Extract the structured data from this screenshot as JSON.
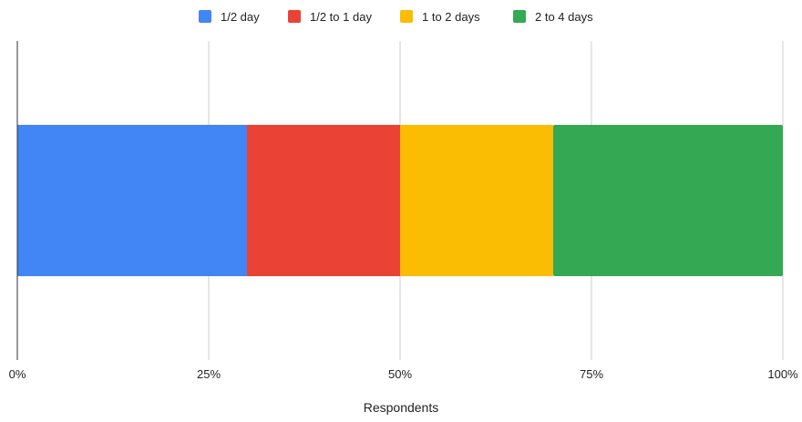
{
  "chart_data": {
    "type": "bar",
    "orientation": "horizontal",
    "stacking": "percent",
    "categories": [
      ""
    ],
    "series": [
      {
        "name": "1/2 day",
        "values": [
          30
        ],
        "color": "#4285F4"
      },
      {
        "name": "1/2 to 1 day",
        "values": [
          20
        ],
        "color": "#EA4335"
      },
      {
        "name": "1 to 2 days",
        "values": [
          20
        ],
        "color": "#FBBC04"
      },
      {
        "name": "2 to 4 days",
        "values": [
          30
        ],
        "color": "#34A853"
      }
    ],
    "title": "",
    "xlabel": "Respondents",
    "ylabel": "",
    "xlim": [
      0,
      100
    ],
    "x_ticks": [
      0,
      25,
      50,
      75,
      100
    ],
    "x_tick_labels": [
      "0%",
      "25%",
      "50%",
      "75%",
      "100%"
    ],
    "grid": true,
    "legend_position": "top"
  }
}
